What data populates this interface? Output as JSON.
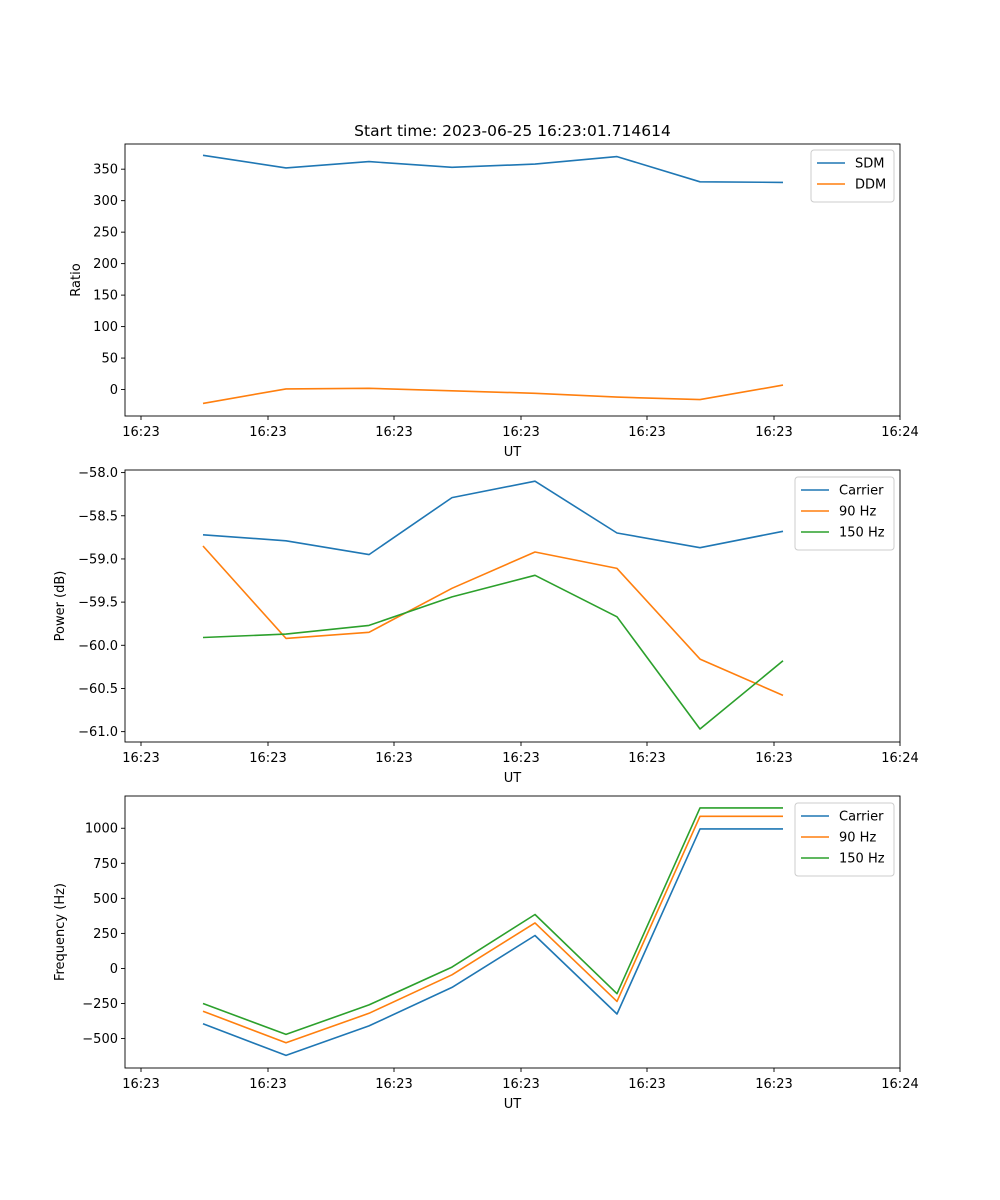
{
  "figure_title": "Start time: 2023-06-25 16:23:01.714614",
  "chart_data": [
    {
      "type": "line",
      "xlabel": "UT",
      "ylabel": "Ratio",
      "x": [
        "16:23:01.9",
        "16:23:02.5",
        "16:23:03.2",
        "16:23:03.8",
        "16:23:04.5",
        "16:23:05.1",
        "16:23:05.7",
        "16:23:06.3"
      ],
      "xticks": [
        "16:23",
        "16:23",
        "16:23",
        "16:23",
        "16:23",
        "16:23",
        "16:24"
      ],
      "yticks": [
        0,
        50,
        100,
        150,
        200,
        250,
        300,
        350
      ],
      "ylim": [
        -42,
        390
      ],
      "legend": "top-right",
      "series": [
        {
          "name": "SDM",
          "color": "#1f77b4",
          "values": [
            372,
            352,
            362,
            353,
            358,
            370,
            330,
            329
          ]
        },
        {
          "name": "DDM",
          "color": "#ff7f0e",
          "values": [
            -22,
            1,
            2,
            -2,
            -6,
            -12,
            -16,
            7
          ]
        }
      ]
    },
    {
      "type": "line",
      "xlabel": "UT",
      "ylabel": "Power (dB)",
      "x": [
        "16:23:01.9",
        "16:23:02.5",
        "16:23:03.2",
        "16:23:03.8",
        "16:23:04.5",
        "16:23:05.1",
        "16:23:05.7",
        "16:23:06.3"
      ],
      "xticks": [
        "16:23",
        "16:23",
        "16:23",
        "16:23",
        "16:23",
        "16:23",
        "16:24"
      ],
      "yticks": [
        "-61.0",
        "-60.5",
        "-60.0",
        "-59.5",
        "-59.0",
        "-58.5",
        "-58.0"
      ],
      "ylim": [
        -61.12,
        -57.97
      ],
      "legend": "top-right",
      "series": [
        {
          "name": "Carrier",
          "color": "#1f77b4",
          "values": [
            -58.72,
            -58.79,
            -58.95,
            -58.29,
            -58.1,
            -58.7,
            -58.87,
            -58.68
          ]
        },
        {
          "name": "90 Hz",
          "color": "#ff7f0e",
          "values": [
            -58.85,
            -59.92,
            -59.85,
            -59.34,
            -58.92,
            -59.11,
            -60.16,
            -60.58
          ]
        },
        {
          "name": "150 Hz",
          "color": "#2ca02c",
          "values": [
            -59.91,
            -59.87,
            -59.77,
            -59.44,
            -59.19,
            -59.67,
            -60.97,
            -60.18
          ]
        }
      ]
    },
    {
      "type": "line",
      "xlabel": "UT",
      "ylabel": "Frequency (Hz)",
      "x": [
        "16:23:01.9",
        "16:23:02.5",
        "16:23:03.2",
        "16:23:03.8",
        "16:23:04.5",
        "16:23:05.1",
        "16:23:05.7",
        "16:23:06.3"
      ],
      "xticks": [
        "16:23",
        "16:23",
        "16:23",
        "16:23",
        "16:23",
        "16:23",
        "16:24"
      ],
      "yticks": [
        -500,
        -250,
        0,
        250,
        500,
        750,
        1000
      ],
      "ylim": [
        -710,
        1230
      ],
      "legend": "top-right",
      "series": [
        {
          "name": "Carrier",
          "color": "#1f77b4",
          "values": [
            -395,
            -620,
            -410,
            -135,
            235,
            -325,
            995,
            995
          ]
        },
        {
          "name": "90 Hz",
          "color": "#ff7f0e",
          "values": [
            -305,
            -530,
            -320,
            -45,
            325,
            -235,
            1085,
            1085
          ]
        },
        {
          "name": "150 Hz",
          "color": "#2ca02c",
          "values": [
            -250,
            -470,
            -260,
            10,
            385,
            -180,
            1145,
            1145
          ]
        }
      ]
    }
  ]
}
